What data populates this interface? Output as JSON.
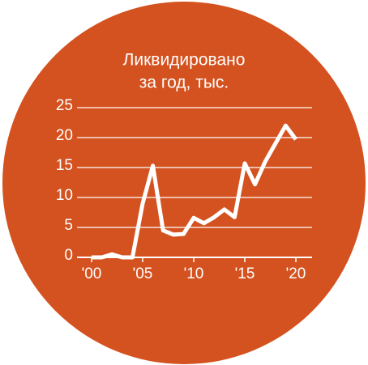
{
  "chart_data": {
    "type": "line",
    "title": [
      "Ликвидировано",
      "за год, тыс."
    ],
    "x": [
      2000,
      2001,
      2002,
      2003,
      2004,
      2005,
      2006,
      2007,
      2008,
      2009,
      2010,
      2011,
      2012,
      2013,
      2014,
      2015,
      2016,
      2017,
      2018,
      2019,
      2020
    ],
    "series": [
      {
        "name": "Ликвидировано",
        "color": "#ffffff",
        "values": [
          0,
          0,
          0.5,
          0,
          0,
          9,
          15.3,
          4.5,
          3.8,
          3.9,
          6.6,
          5.7,
          6.7,
          8,
          6.7,
          15.7,
          12.2,
          16,
          19,
          22,
          19.7
        ]
      }
    ],
    "background": "#d4521f",
    "xlim": [
      2000,
      2020
    ],
    "xticks": [
      {
        "value": 2000,
        "label": "'00"
      },
      {
        "value": 2005,
        "label": "'05"
      },
      {
        "value": 2010,
        "label": "'10"
      },
      {
        "value": 2015,
        "label": "'15"
      },
      {
        "value": 2020,
        "label": "'20"
      }
    ],
    "ylim": [
      0,
      25
    ],
    "yticks": [
      0,
      5,
      10,
      15,
      20,
      25
    ],
    "grid": true
  }
}
